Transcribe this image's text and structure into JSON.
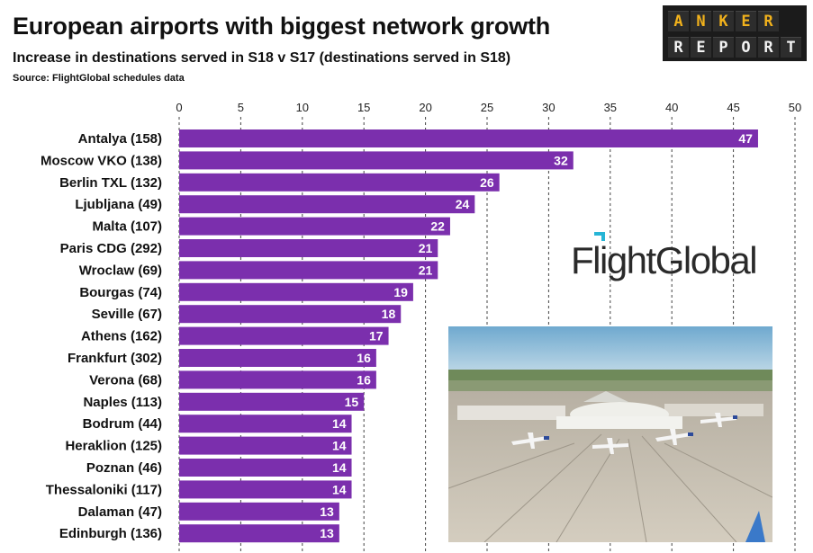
{
  "header": {
    "title": "European airports with biggest network growth",
    "subtitle": "Increase in destinations served in S18 v S17 (destinations served in S18)",
    "source": "Source: FlightGlobal schedules data"
  },
  "badge": {
    "line1": "ANKER",
    "line2": "REPORT"
  },
  "logo": {
    "text": "FlightGlobal"
  },
  "colors": {
    "bar": "#7b2fad",
    "grid": "#444444",
    "value_text": "#ffffff",
    "badge_bg": "#1b1b1b",
    "badge_gold": "#f2b21c",
    "logo_accent": "#27b5d6"
  },
  "chart_data": {
    "type": "bar",
    "orientation": "horizontal",
    "title": "European airports with biggest network growth",
    "subtitle": "Increase in destinations served in S18 v S17 (destinations served in S18)",
    "categories": [
      "Antalya (158)",
      "Moscow VKO (138)",
      "Berlin TXL (132)",
      "Ljubljana (49)",
      "Malta (107)",
      "Paris CDG (292)",
      "Wroclaw (69)",
      "Bourgas (74)",
      "Seville (67)",
      "Athens (162)",
      "Frankfurt (302)",
      "Verona (68)",
      "Naples (113)",
      "Bodrum (44)",
      "Heraklion (125)",
      "Poznan (46)",
      "Thessaloniki (117)",
      "Dalaman (47)",
      "Edinburgh (136)"
    ],
    "values": [
      47,
      32,
      26,
      24,
      22,
      21,
      21,
      19,
      18,
      17,
      16,
      16,
      15,
      14,
      14,
      14,
      14,
      13,
      13
    ],
    "xlim": [
      0,
      50
    ],
    "xticks": [
      0,
      5,
      10,
      15,
      20,
      25,
      30,
      35,
      40,
      45,
      50
    ],
    "axis_position": "top",
    "grid": "vertical dashed",
    "data_labels": true
  }
}
